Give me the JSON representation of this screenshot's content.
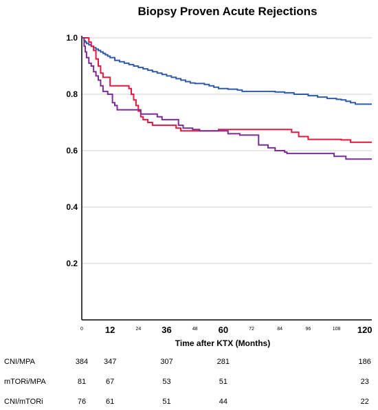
{
  "chart_data": {
    "type": "line",
    "subtype": "kaplan-meier step",
    "title": "Biopsy Proven Acute Rejections",
    "xlabel": "Time after KTX (Months)",
    "ylabel": "",
    "xlim": [
      0,
      123
    ],
    "ylim": [
      0,
      1.0
    ],
    "y_ticks": [
      "0.2",
      "0.4",
      "0.6",
      "0.8",
      "1.0"
    ],
    "x_ticks": [
      {
        "value": 0,
        "label": "0",
        "emphasis": false
      },
      {
        "value": 12,
        "label": "12",
        "emphasis": true
      },
      {
        "value": 24,
        "label": "24",
        "emphasis": false
      },
      {
        "value": 36,
        "label": "36",
        "emphasis": true
      },
      {
        "value": 48,
        "label": "48",
        "emphasis": false
      },
      {
        "value": 60,
        "label": "60",
        "emphasis": true
      },
      {
        "value": 72,
        "label": "72",
        "emphasis": false
      },
      {
        "value": 84,
        "label": "84",
        "emphasis": false
      },
      {
        "value": 96,
        "label": "96",
        "emphasis": false
      },
      {
        "value": 108,
        "label": "108",
        "emphasis": false
      },
      {
        "value": 120,
        "label": "120",
        "emphasis": true
      }
    ],
    "grid": "horizontal",
    "legend": "none",
    "series": [
      {
        "color": "#2e5aac",
        "points": [
          [
            0,
            1.0
          ],
          [
            1,
            0.99
          ],
          [
            1.5,
            0.985
          ],
          [
            2,
            0.98
          ],
          [
            3,
            0.975
          ],
          [
            4,
            0.97
          ],
          [
            5,
            0.965
          ],
          [
            6,
            0.96
          ],
          [
            7,
            0.955
          ],
          [
            8,
            0.95
          ],
          [
            9,
            0.945
          ],
          [
            10,
            0.94
          ],
          [
            11,
            0.935
          ],
          [
            12,
            0.93
          ],
          [
            14,
            0.92
          ],
          [
            16,
            0.915
          ],
          [
            18,
            0.91
          ],
          [
            20,
            0.905
          ],
          [
            22,
            0.9
          ],
          [
            24,
            0.895
          ],
          [
            26,
            0.89
          ],
          [
            28,
            0.885
          ],
          [
            30,
            0.88
          ],
          [
            32,
            0.875
          ],
          [
            34,
            0.87
          ],
          [
            36,
            0.865
          ],
          [
            38,
            0.86
          ],
          [
            40,
            0.855
          ],
          [
            42,
            0.85
          ],
          [
            44,
            0.845
          ],
          [
            46,
            0.84
          ],
          [
            48,
            0.838
          ],
          [
            52,
            0.835
          ],
          [
            54,
            0.83
          ],
          [
            56,
            0.825
          ],
          [
            58,
            0.82
          ],
          [
            62,
            0.818
          ],
          [
            66,
            0.815
          ],
          [
            68,
            0.81
          ],
          [
            76,
            0.81
          ],
          [
            82,
            0.808
          ],
          [
            86,
            0.805
          ],
          [
            90,
            0.8
          ],
          [
            96,
            0.795
          ],
          [
            100,
            0.79
          ],
          [
            104,
            0.785
          ],
          [
            108,
            0.782
          ],
          [
            110,
            0.78
          ],
          [
            112,
            0.775
          ],
          [
            114,
            0.77
          ],
          [
            116,
            0.765
          ],
          [
            123,
            0.765
          ]
        ]
      },
      {
        "color": "#e8163c",
        "points": [
          [
            0,
            1.0
          ],
          [
            3,
            0.985
          ],
          [
            4,
            0.97
          ],
          [
            5,
            0.955
          ],
          [
            6,
            0.925
          ],
          [
            7,
            0.9
          ],
          [
            8,
            0.875
          ],
          [
            9,
            0.86
          ],
          [
            12,
            0.83
          ],
          [
            20,
            0.82
          ],
          [
            21,
            0.8
          ],
          [
            22,
            0.78
          ],
          [
            23,
            0.76
          ],
          [
            24,
            0.74
          ],
          [
            25,
            0.72
          ],
          [
            26,
            0.71
          ],
          [
            28,
            0.7
          ],
          [
            30,
            0.69
          ],
          [
            40,
            0.68
          ],
          [
            42,
            0.67
          ],
          [
            55,
            0.67
          ],
          [
            58,
            0.675
          ],
          [
            88,
            0.675
          ],
          [
            89,
            0.665
          ],
          [
            92,
            0.65
          ],
          [
            96,
            0.64
          ],
          [
            110,
            0.638
          ],
          [
            114,
            0.63
          ],
          [
            123,
            0.63
          ]
        ]
      },
      {
        "color": "#7a2c96",
        "points": [
          [
            0,
            1.0
          ],
          [
            1,
            0.97
          ],
          [
            1.5,
            0.95
          ],
          [
            2,
            0.93
          ],
          [
            3,
            0.91
          ],
          [
            4,
            0.9
          ],
          [
            5,
            0.88
          ],
          [
            6,
            0.865
          ],
          [
            7,
            0.85
          ],
          [
            8,
            0.83
          ],
          [
            9,
            0.81
          ],
          [
            11,
            0.8
          ],
          [
            13,
            0.77
          ],
          [
            14,
            0.76
          ],
          [
            15,
            0.745
          ],
          [
            24,
            0.745
          ],
          [
            25,
            0.73
          ],
          [
            32,
            0.72
          ],
          [
            34,
            0.71
          ],
          [
            41,
            0.69
          ],
          [
            43,
            0.68
          ],
          [
            47,
            0.675
          ],
          [
            50,
            0.67
          ],
          [
            60,
            0.67
          ],
          [
            62,
            0.66
          ],
          [
            67,
            0.655
          ],
          [
            75,
            0.62
          ],
          [
            79,
            0.61
          ],
          [
            82,
            0.6
          ],
          [
            86,
            0.595
          ],
          [
            87,
            0.59
          ],
          [
            100,
            0.59
          ],
          [
            107,
            0.58
          ],
          [
            112,
            0.57
          ],
          [
            123,
            0.57
          ]
        ]
      }
    ]
  },
  "risk_table": {
    "rows": [
      {
        "label": "CNI/MPA",
        "values": [
          "384",
          "347",
          "307",
          "281",
          "186"
        ]
      },
      {
        "label": "mTORi/MPA",
        "values": [
          "81",
          "67",
          "53",
          "51",
          "23"
        ]
      },
      {
        "label": "CNI/mTORi",
        "values": [
          "76",
          "61",
          "51",
          "44",
          "22"
        ]
      }
    ],
    "at_months": [
      0,
      12,
      36,
      60,
      120
    ]
  }
}
